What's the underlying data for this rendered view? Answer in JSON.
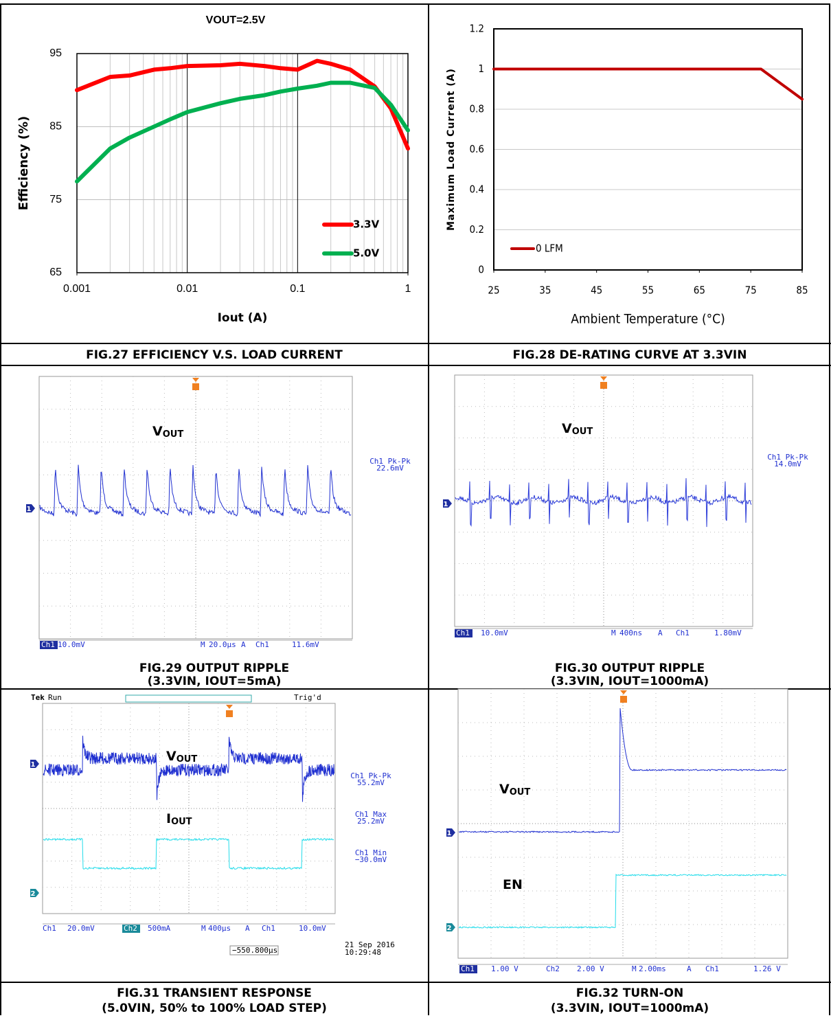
{
  "fig27": {
    "caption": "FIG.27 EFFICIENCY V.S. LOAD CURRENT",
    "chart": {
      "type": "line",
      "title": "VOUT=2.5V",
      "xlabel": "Iout (A)",
      "ylabel": "Efficiency (%)",
      "xlog": true,
      "x": [
        0.001,
        0.002,
        0.003,
        0.005,
        0.007,
        0.01,
        0.02,
        0.03,
        0.05,
        0.07,
        0.1,
        0.15,
        0.2,
        0.3,
        0.5,
        0.7,
        1
      ],
      "xlim": [
        0.001,
        1
      ],
      "xticks": [
        0.001,
        0.01,
        0.1,
        1
      ],
      "ylim": [
        65,
        95
      ],
      "yticks": [
        65,
        75,
        85,
        95
      ],
      "grid": true,
      "legend": "lower right",
      "series": [
        {
          "name": "3.3V",
          "color": "#ff0000",
          "values": [
            90,
            91.8,
            92,
            92.8,
            93,
            93.3,
            93.4,
            93.6,
            93.3,
            93,
            92.8,
            94,
            93.6,
            92.8,
            90.5,
            87.5,
            82
          ]
        },
        {
          "name": "5.0V",
          "color": "#00b050",
          "values": [
            77.5,
            82,
            83.5,
            85,
            86,
            87,
            88.2,
            88.8,
            89.3,
            89.8,
            90.2,
            90.6,
            91,
            91,
            90.3,
            88,
            84.5
          ]
        }
      ]
    }
  },
  "fig28": {
    "caption": "FIG.28 DE-RATING CURVE AT 3.3VIN",
    "chart": {
      "type": "line",
      "xlabel": "Ambient Temperature (°C)",
      "ylabel": "Maximum Load Current (A)",
      "xlog": false,
      "x": [
        25,
        77,
        85
      ],
      "xlim": [
        25,
        85
      ],
      "xticks": [
        25,
        35,
        45,
        55,
        65,
        75,
        85
      ],
      "ylim": [
        0,
        1.2
      ],
      "yticks": [
        0,
        0.2,
        0.4,
        0.6,
        0.8,
        1,
        1.2
      ],
      "grid": true,
      "legend": "lower left",
      "series": [
        {
          "name": "0 LFM",
          "color": "#c00000",
          "values": [
            1,
            1,
            0.85
          ]
        }
      ]
    }
  },
  "fig29": {
    "caption": [
      "FIG.29 OUTPUT RIPPLE",
      "(3.3VIN, IOUT=5mA)"
    ],
    "labels": [
      {
        "text": "V",
        "sub": "OUT"
      }
    ],
    "markers": [
      "1"
    ],
    "readouts": [
      [
        "Ch1 Pk-Pk",
        "22.6mV"
      ]
    ],
    "status": [
      "Ch1",
      "10.0mV",
      "M",
      "20.0µs",
      "A",
      "Ch1",
      "11.6mV"
    ]
  },
  "fig30": {
    "caption": [
      "FIG.30 OUTPUT RIPPLE",
      "(3.3VIN, IOUT=1000mA)"
    ],
    "labels": [
      {
        "text": "V",
        "sub": "OUT"
      }
    ],
    "markers": [
      "1"
    ],
    "readouts": [
      [
        "Ch1 Pk-Pk",
        "14.0mV"
      ]
    ],
    "status": [
      "Ch1",
      "10.0mV",
      "M",
      "400ns",
      "A",
      "Ch1",
      "1.80mV"
    ]
  },
  "fig31": {
    "caption": [
      "FIG.31 TRANSIENT RESPONSE",
      "(5.0VIN, 50% to 100% LOAD STEP)"
    ],
    "header": [
      "Tek",
      "Run",
      "Trig'd"
    ],
    "labels": [
      {
        "text": "V",
        "sub": "OUT"
      },
      {
        "text": "I",
        "sub": "OUT"
      }
    ],
    "markers": [
      "1",
      "2"
    ],
    "readouts": [
      [
        "Ch1 Pk-Pk",
        "55.2mV"
      ],
      [
        "Ch1 Max",
        "25.2mV"
      ],
      [
        "Ch1 Min",
        "−30.0mV"
      ]
    ],
    "status": [
      "Ch1",
      "20.0mV",
      "Ch2",
      "500mA",
      "M",
      "400µs",
      "A",
      "Ch1",
      "10.0mV"
    ],
    "offset": "−550.800µs",
    "date": [
      "21 Sep  2016",
      "10:29:48"
    ]
  },
  "fig32": {
    "caption": [
      "FIG.32 TURN-ON",
      "(3.3VIN, IOUT=1000mA)"
    ],
    "labels": [
      {
        "text": "V",
        "sub": "OUT"
      },
      {
        "text": "EN"
      }
    ],
    "markers": [
      "1",
      "2"
    ],
    "status": [
      "Ch1",
      "1.00 V",
      "Ch2",
      "2.00 V",
      "M",
      "2.00ms",
      "A",
      "Ch1",
      "1.26 V"
    ]
  }
}
